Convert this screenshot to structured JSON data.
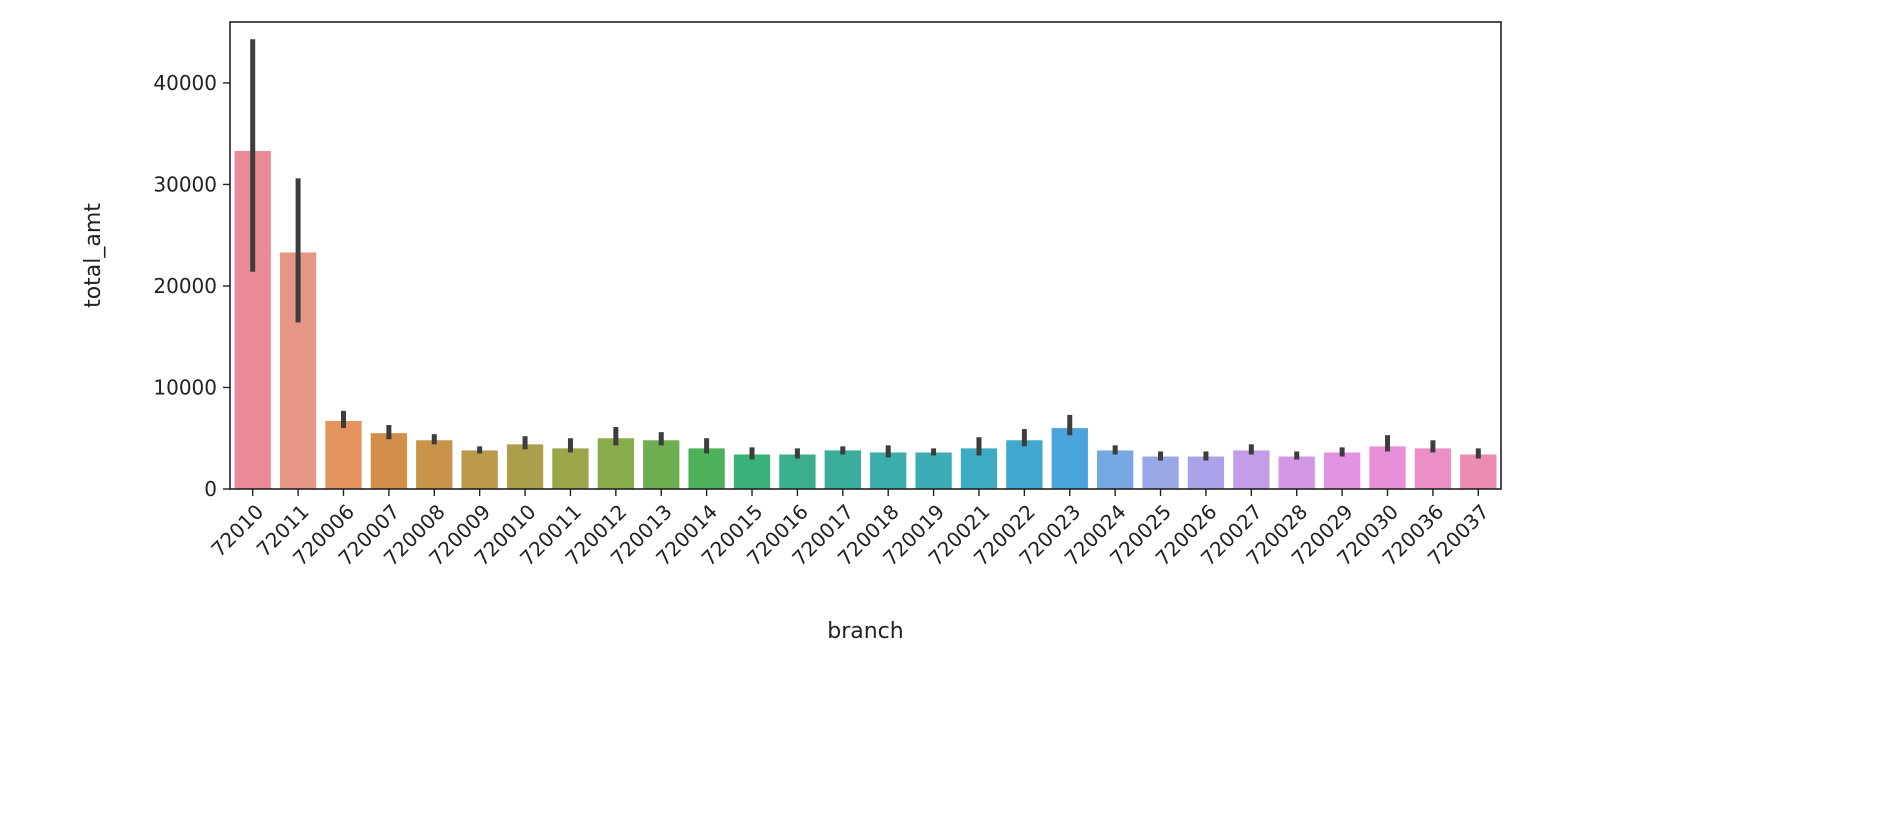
{
  "chart_data": {
    "type": "bar",
    "xlabel": "branch",
    "ylabel": "total_amt",
    "ylim": [
      0,
      46000
    ],
    "yticks": [
      0,
      10000,
      20000,
      30000,
      40000
    ],
    "grid": false,
    "categories": [
      "72010",
      "72011",
      "720006",
      "720007",
      "720008",
      "720009",
      "720010",
      "720011",
      "720012",
      "720013",
      "720014",
      "720015",
      "720016",
      "720017",
      "720018",
      "720019",
      "720021",
      "720022",
      "720023",
      "720024",
      "720025",
      "720026",
      "720027",
      "720028",
      "720029",
      "720030",
      "720036",
      "720037"
    ],
    "values": [
      33300,
      23300,
      6700,
      5500,
      4800,
      3800,
      4400,
      4000,
      5000,
      4800,
      4000,
      3400,
      3400,
      3800,
      3600,
      3600,
      4000,
      4800,
      6000,
      3800,
      3200,
      3200,
      3800,
      3200,
      3600,
      4200,
      4000,
      3400
    ],
    "error_low": [
      21400,
      16400,
      6000,
      4900,
      4400,
      3500,
      3900,
      3600,
      4300,
      4300,
      3500,
      2900,
      3000,
      3400,
      3100,
      3300,
      3300,
      4200,
      5300,
      3400,
      2800,
      2800,
      3400,
      2900,
      3200,
      3700,
      3600,
      3000
    ],
    "error_high": [
      44300,
      30600,
      7700,
      6300,
      5400,
      4200,
      5200,
      5000,
      6100,
      5600,
      5000,
      4100,
      4000,
      4200,
      4300,
      4000,
      5100,
      5900,
      7300,
      4300,
      3700,
      3700,
      4400,
      3700,
      4100,
      5300,
      4800,
      4000
    ],
    "colors": [
      "#ea8b97",
      "#e79585",
      "#e6945e",
      "#d58d4a",
      "#c8944a",
      "#bb9a4a",
      "#ab9f4b",
      "#9ba54a",
      "#88ab4b",
      "#6fae4e",
      "#4fb05a",
      "#3ab178",
      "#3aaf8d",
      "#3aae9b",
      "#3badaa",
      "#3cacb6",
      "#3dabc1",
      "#40a8cf",
      "#49a5dc",
      "#76a9e2",
      "#9aa8e8",
      "#aaa2ea",
      "#c39de7",
      "#d298e4",
      "#e192e0",
      "#e98fd8",
      "#eb8fc6",
      "#ec8cb2"
    ]
  }
}
